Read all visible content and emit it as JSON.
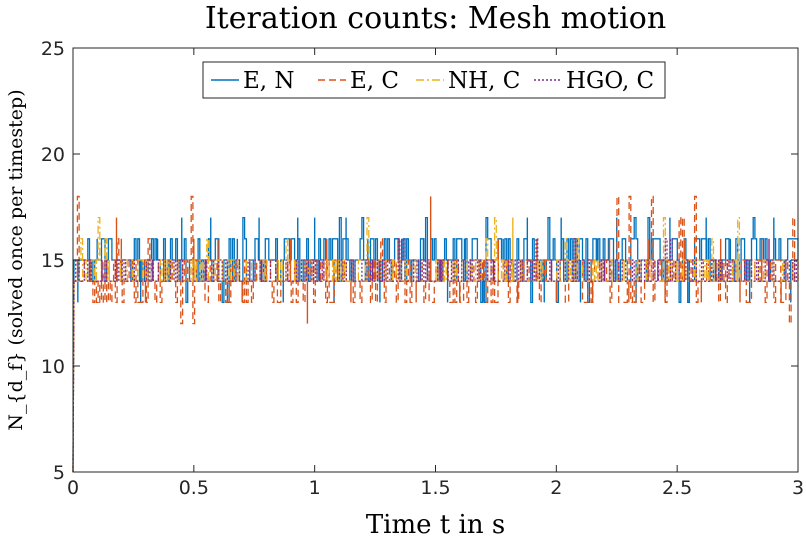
{
  "chart_data": {
    "type": "line",
    "title": "Iteration counts: Mesh motion",
    "xlabel": "Time t in s",
    "ylabel": "N_{d_f} (solved once per timestep)",
    "xlim": [
      0,
      3
    ],
    "ylim": [
      5,
      25
    ],
    "xticks": [
      0,
      0.5,
      1,
      1.5,
      2,
      2.5,
      3
    ],
    "xtick_labels": [
      "0",
      "0.5",
      "1",
      "1.5",
      "2",
      "2.5",
      "3"
    ],
    "yticks": [
      5,
      10,
      15,
      20,
      25
    ],
    "ytick_labels": [
      "5",
      "10",
      "15",
      "20",
      "25"
    ],
    "grid": false,
    "legend_location": "top-center",
    "series": [
      {
        "name": "E, N",
        "color": "#0072BD",
        "style": "solid",
        "start_value": 5,
        "baseline": 15,
        "range": [
          13,
          17
        ],
        "spikes": [
          {
            "t": 0.02,
            "v": 13
          },
          {
            "t": 0.1,
            "v": 16
          },
          {
            "t": 0.28,
            "v": 13
          },
          {
            "t": 0.35,
            "v": 16
          },
          {
            "t": 0.45,
            "v": 17
          },
          {
            "t": 0.57,
            "v": 17
          },
          {
            "t": 0.68,
            "v": 16
          },
          {
            "t": 0.77,
            "v": 17
          },
          {
            "t": 0.87,
            "v": 13
          },
          {
            "t": 0.93,
            "v": 17
          },
          {
            "t": 1.0,
            "v": 17
          },
          {
            "t": 1.08,
            "v": 13
          },
          {
            "t": 1.13,
            "v": 17
          },
          {
            "t": 1.22,
            "v": 16
          },
          {
            "t": 1.27,
            "v": 13
          },
          {
            "t": 1.36,
            "v": 16
          },
          {
            "t": 1.45,
            "v": 16
          },
          {
            "t": 1.55,
            "v": 13
          },
          {
            "t": 1.62,
            "v": 16
          },
          {
            "t": 1.7,
            "v": 13
          },
          {
            "t": 1.78,
            "v": 16
          },
          {
            "t": 1.88,
            "v": 17
          },
          {
            "t": 1.95,
            "v": 13
          },
          {
            "t": 2.02,
            "v": 17
          },
          {
            "t": 2.1,
            "v": 13
          },
          {
            "t": 2.17,
            "v": 16
          },
          {
            "t": 2.25,
            "v": 17
          },
          {
            "t": 2.33,
            "v": 13
          },
          {
            "t": 2.4,
            "v": 16
          },
          {
            "t": 2.47,
            "v": 17
          },
          {
            "t": 2.55,
            "v": 13
          },
          {
            "t": 2.62,
            "v": 17
          },
          {
            "t": 2.72,
            "v": 16
          },
          {
            "t": 2.8,
            "v": 13
          },
          {
            "t": 2.9,
            "v": 17
          },
          {
            "t": 2.97,
            "v": 13
          }
        ]
      },
      {
        "name": "E, C",
        "color": "#D95319",
        "style": "dashed",
        "start_value": 5,
        "baseline": 14,
        "range": [
          12,
          18
        ],
        "spikes": [
          {
            "t": 0.07,
            "v": 15
          },
          {
            "t": 0.18,
            "v": 17
          },
          {
            "t": 0.2,
            "v": 16
          },
          {
            "t": 0.3,
            "v": 13
          },
          {
            "t": 0.4,
            "v": 15
          },
          {
            "t": 0.5,
            "v": 16
          },
          {
            "t": 0.6,
            "v": 16
          },
          {
            "t": 0.7,
            "v": 13
          },
          {
            "t": 0.8,
            "v": 15
          },
          {
            "t": 0.9,
            "v": 16
          },
          {
            "t": 0.97,
            "v": 12
          },
          {
            "t": 1.05,
            "v": 16
          },
          {
            "t": 1.15,
            "v": 13
          },
          {
            "t": 1.25,
            "v": 15
          },
          {
            "t": 1.35,
            "v": 16
          },
          {
            "t": 1.42,
            "v": 13
          },
          {
            "t": 1.48,
            "v": 18
          },
          {
            "t": 1.6,
            "v": 13
          },
          {
            "t": 1.68,
            "v": 15
          },
          {
            "t": 1.76,
            "v": 16
          },
          {
            "t": 1.84,
            "v": 13
          },
          {
            "t": 1.92,
            "v": 16
          },
          {
            "t": 2.0,
            "v": 13
          },
          {
            "t": 2.08,
            "v": 16
          },
          {
            "t": 2.15,
            "v": 13
          },
          {
            "t": 2.22,
            "v": 16
          },
          {
            "t": 2.3,
            "v": 13
          },
          {
            "t": 2.38,
            "v": 16
          },
          {
            "t": 2.45,
            "v": 13
          },
          {
            "t": 2.53,
            "v": 16
          },
          {
            "t": 2.6,
            "v": 13
          },
          {
            "t": 2.68,
            "v": 16
          },
          {
            "t": 2.76,
            "v": 13
          },
          {
            "t": 2.85,
            "v": 16
          },
          {
            "t": 2.93,
            "v": 13
          },
          {
            "t": 2.99,
            "v": 14
          }
        ]
      },
      {
        "name": "NH, C",
        "color": "#EDB120",
        "style": "dashdot",
        "start_value": 5,
        "baseline": 14,
        "range": [
          14,
          17
        ],
        "spikes": [
          {
            "t": 0.15,
            "v": 15
          },
          {
            "t": 0.38,
            "v": 15
          },
          {
            "t": 0.62,
            "v": 15
          },
          {
            "t": 0.85,
            "v": 15
          },
          {
            "t": 1.1,
            "v": 15
          },
          {
            "t": 1.32,
            "v": 15
          },
          {
            "t": 1.58,
            "v": 15
          },
          {
            "t": 1.82,
            "v": 17
          },
          {
            "t": 2.05,
            "v": 15
          },
          {
            "t": 2.28,
            "v": 15
          },
          {
            "t": 2.5,
            "v": 15
          },
          {
            "t": 2.75,
            "v": 15
          }
        ]
      },
      {
        "name": "HGO, C",
        "color": "#7E2F8E",
        "style": "dotted",
        "start_value": 5,
        "baseline": 14,
        "range": [
          14,
          16
        ],
        "spikes": [
          {
            "t": 0.12,
            "v": 15
          },
          {
            "t": 0.33,
            "v": 15
          },
          {
            "t": 0.55,
            "v": 15
          },
          {
            "t": 0.78,
            "v": 15
          },
          {
            "t": 1.02,
            "v": 15
          },
          {
            "t": 1.24,
            "v": 15
          },
          {
            "t": 1.52,
            "v": 15
          },
          {
            "t": 1.74,
            "v": 15
          },
          {
            "t": 1.98,
            "v": 15
          },
          {
            "t": 2.2,
            "v": 15
          },
          {
            "t": 2.42,
            "v": 15
          },
          {
            "t": 2.66,
            "v": 15
          },
          {
            "t": 2.88,
            "v": 16
          }
        ]
      }
    ],
    "legend_label_parts": {
      "sub_symbol": "d",
      "sub_sub": "f",
      "main_symbol": "N",
      "ylabel_rest": "(solved once per timestep)",
      "xlabel_main": "Time ",
      "xlabel_var": "t",
      "xlabel_rest": " in s"
    }
  }
}
